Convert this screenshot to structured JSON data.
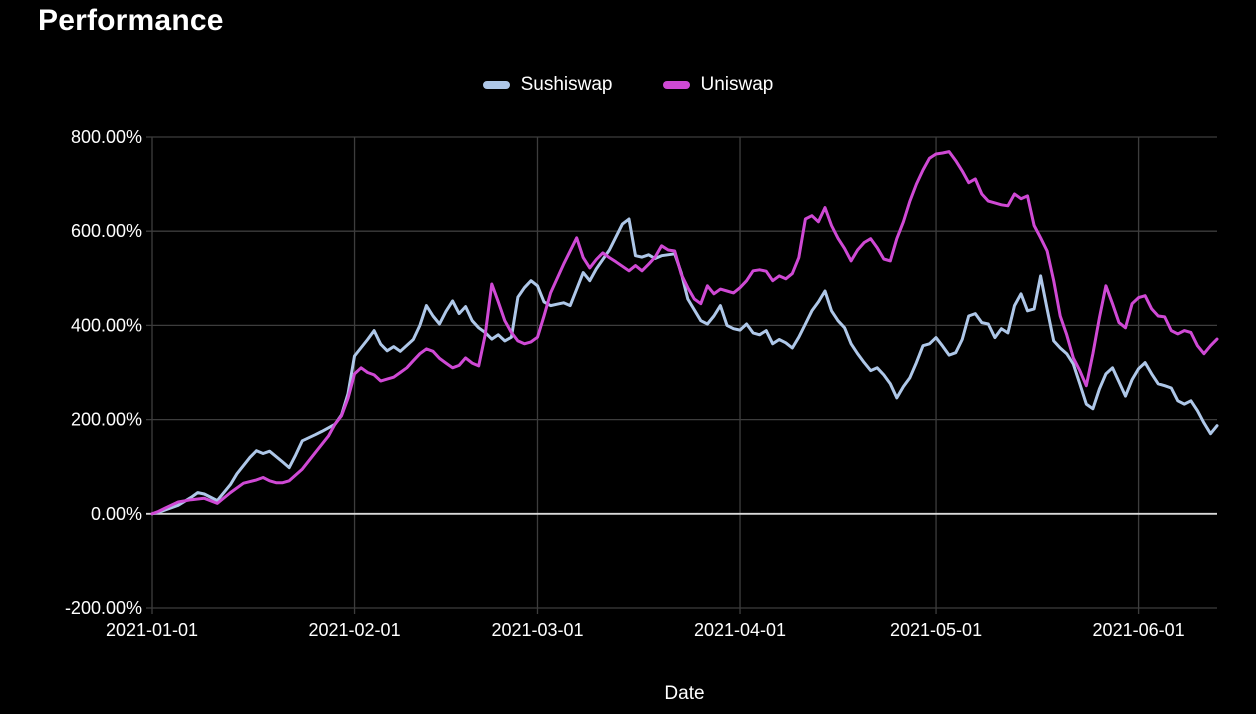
{
  "page": {
    "background": "#000000",
    "text_color": "#ffffff"
  },
  "chart_data": {
    "type": "line",
    "title": "Performance",
    "xlabel": "Date",
    "ylabel": "",
    "x_unit": "days since 2021-01-01",
    "x_range_days": [
      0,
      163
    ],
    "x_ticks": [
      {
        "day": 0,
        "label": "2021-01-01"
      },
      {
        "day": 31,
        "label": "2021-02-01"
      },
      {
        "day": 59,
        "label": "2021-03-01"
      },
      {
        "day": 90,
        "label": "2021-04-01"
      },
      {
        "day": 120,
        "label": "2021-05-01"
      },
      {
        "day": 151,
        "label": "2021-06-01"
      }
    ],
    "ylim": [
      -200,
      800
    ],
    "y_ticks": [
      {
        "value": 800,
        "label": "800.00%"
      },
      {
        "value": 600,
        "label": "600.00%"
      },
      {
        "value": 400,
        "label": "400.00%"
      },
      {
        "value": 200,
        "label": "200.00%"
      },
      {
        "value": 0,
        "label": "0.00%"
      },
      {
        "value": -200,
        "label": "-200.00%"
      }
    ],
    "grid": true,
    "legend_position": "top-center",
    "colors": {
      "grid": "#3d3d3d",
      "zero_line": "#d9d9d9",
      "axis_text": "#ffffff"
    },
    "series": [
      {
        "name": "Sushiswap",
        "color": "#aec7e8",
        "points": [
          [
            0,
            0
          ],
          [
            1,
            3
          ],
          [
            2,
            8
          ],
          [
            4,
            18
          ],
          [
            6,
            35
          ],
          [
            7,
            45
          ],
          [
            8,
            42
          ],
          [
            10,
            28
          ],
          [
            12,
            62
          ],
          [
            13,
            85
          ],
          [
            15,
            120
          ],
          [
            16,
            134
          ],
          [
            17,
            128
          ],
          [
            18,
            133
          ],
          [
            20,
            110
          ],
          [
            21,
            98
          ],
          [
            22,
            125
          ],
          [
            23,
            155
          ],
          [
            25,
            168
          ],
          [
            26,
            175
          ],
          [
            28,
            190
          ],
          [
            29,
            210
          ],
          [
            30,
            255
          ],
          [
            31,
            335
          ],
          [
            33,
            370
          ],
          [
            34,
            389
          ],
          [
            35,
            360
          ],
          [
            36,
            346
          ],
          [
            37,
            355
          ],
          [
            38,
            345
          ],
          [
            40,
            370
          ],
          [
            41,
            400
          ],
          [
            42,
            442
          ],
          [
            43,
            420
          ],
          [
            44,
            403
          ],
          [
            45,
            430
          ],
          [
            46,
            452
          ],
          [
            47,
            425
          ],
          [
            48,
            440
          ],
          [
            49,
            410
          ],
          [
            50,
            395
          ],
          [
            51,
            385
          ],
          [
            52,
            371
          ],
          [
            53,
            380
          ],
          [
            54,
            367
          ],
          [
            55,
            375
          ],
          [
            56,
            460
          ],
          [
            57,
            480
          ],
          [
            58,
            495
          ],
          [
            59,
            484
          ],
          [
            60,
            450
          ],
          [
            61,
            442
          ],
          [
            62,
            445
          ],
          [
            63,
            448
          ],
          [
            64,
            442
          ],
          [
            66,
            512
          ],
          [
            67,
            495
          ],
          [
            68,
            520
          ],
          [
            70,
            560
          ],
          [
            72,
            615
          ],
          [
            73,
            626
          ],
          [
            74,
            548
          ],
          [
            75,
            545
          ],
          [
            76,
            550
          ],
          [
            77,
            542
          ],
          [
            78,
            548
          ],
          [
            80,
            552
          ],
          [
            81,
            512
          ],
          [
            82,
            456
          ],
          [
            84,
            410
          ],
          [
            85,
            403
          ],
          [
            86,
            420
          ],
          [
            87,
            442
          ],
          [
            88,
            400
          ],
          [
            89,
            393
          ],
          [
            90,
            390
          ],
          [
            91,
            403
          ],
          [
            92,
            384
          ],
          [
            93,
            380
          ],
          [
            94,
            389
          ],
          [
            95,
            361
          ],
          [
            96,
            370
          ],
          [
            97,
            363
          ],
          [
            98,
            352
          ],
          [
            99,
            375
          ],
          [
            100,
            403
          ],
          [
            101,
            431
          ],
          [
            102,
            450
          ],
          [
            103,
            473
          ],
          [
            104,
            431
          ],
          [
            105,
            410
          ],
          [
            106,
            395
          ],
          [
            107,
            361
          ],
          [
            108,
            340
          ],
          [
            109,
            321
          ],
          [
            110,
            304
          ],
          [
            111,
            310
          ],
          [
            112,
            295
          ],
          [
            113,
            276
          ],
          [
            114,
            246
          ],
          [
            115,
            270
          ],
          [
            116,
            289
          ],
          [
            117,
            321
          ],
          [
            118,
            357
          ],
          [
            119,
            361
          ],
          [
            120,
            374
          ],
          [
            121,
            356
          ],
          [
            122,
            337
          ],
          [
            123,
            342
          ],
          [
            124,
            370
          ],
          [
            125,
            420
          ],
          [
            126,
            425
          ],
          [
            127,
            406
          ],
          [
            128,
            403
          ],
          [
            129,
            374
          ],
          [
            130,
            393
          ],
          [
            131,
            384
          ],
          [
            132,
            442
          ],
          [
            133,
            467
          ],
          [
            134,
            431
          ],
          [
            135,
            435
          ],
          [
            136,
            505
          ],
          [
            137,
            435
          ],
          [
            138,
            367
          ],
          [
            139,
            352
          ],
          [
            140,
            340
          ],
          [
            141,
            318
          ],
          [
            142,
            276
          ],
          [
            143,
            233
          ],
          [
            144,
            223
          ],
          [
            145,
            265
          ],
          [
            146,
            297
          ],
          [
            147,
            310
          ],
          [
            148,
            280
          ],
          [
            149,
            250
          ],
          [
            150,
            285
          ],
          [
            151,
            308
          ],
          [
            152,
            321
          ],
          [
            153,
            297
          ],
          [
            154,
            276
          ],
          [
            155,
            272
          ],
          [
            156,
            267
          ],
          [
            157,
            240
          ],
          [
            158,
            233
          ],
          [
            159,
            240
          ],
          [
            160,
            219
          ],
          [
            161,
            193
          ],
          [
            162,
            170
          ],
          [
            163,
            187
          ]
        ]
      },
      {
        "name": "Uniswap",
        "color": "#cf49d4",
        "points": [
          [
            0,
            0
          ],
          [
            1,
            5
          ],
          [
            2,
            12
          ],
          [
            4,
            25
          ],
          [
            6,
            30
          ],
          [
            8,
            33
          ],
          [
            10,
            22
          ],
          [
            12,
            45
          ],
          [
            14,
            65
          ],
          [
            16,
            72
          ],
          [
            17,
            77
          ],
          [
            18,
            70
          ],
          [
            19,
            66
          ],
          [
            20,
            66
          ],
          [
            21,
            70
          ],
          [
            23,
            95
          ],
          [
            25,
            130
          ],
          [
            27,
            165
          ],
          [
            28,
            190
          ],
          [
            29,
            208
          ],
          [
            30,
            245
          ],
          [
            31,
            297
          ],
          [
            32,
            310
          ],
          [
            33,
            300
          ],
          [
            34,
            295
          ],
          [
            35,
            282
          ],
          [
            36,
            286
          ],
          [
            37,
            290
          ],
          [
            38,
            300
          ],
          [
            39,
            310
          ],
          [
            40,
            325
          ],
          [
            41,
            340
          ],
          [
            42,
            350
          ],
          [
            43,
            345
          ],
          [
            44,
            330
          ],
          [
            45,
            320
          ],
          [
            46,
            310
          ],
          [
            47,
            315
          ],
          [
            48,
            331
          ],
          [
            49,
            320
          ],
          [
            50,
            314
          ],
          [
            51,
            380
          ],
          [
            52,
            488
          ],
          [
            53,
            450
          ],
          [
            54,
            410
          ],
          [
            55,
            385
          ],
          [
            56,
            367
          ],
          [
            57,
            361
          ],
          [
            58,
            365
          ],
          [
            59,
            375
          ],
          [
            60,
            420
          ],
          [
            61,
            469
          ],
          [
            63,
            530
          ],
          [
            65,
            586
          ],
          [
            66,
            544
          ],
          [
            67,
            522
          ],
          [
            68,
            540
          ],
          [
            69,
            554
          ],
          [
            70,
            544
          ],
          [
            71,
            535
          ],
          [
            73,
            516
          ],
          [
            74,
            527
          ],
          [
            75,
            516
          ],
          [
            76,
            530
          ],
          [
            77,
            545
          ],
          [
            78,
            569
          ],
          [
            79,
            560
          ],
          [
            80,
            558
          ],
          [
            81,
            509
          ],
          [
            82,
            480
          ],
          [
            83,
            456
          ],
          [
            84,
            446
          ],
          [
            85,
            484
          ],
          [
            86,
            467
          ],
          [
            87,
            477
          ],
          [
            88,
            473
          ],
          [
            89,
            469
          ],
          [
            90,
            480
          ],
          [
            91,
            495
          ],
          [
            92,
            516
          ],
          [
            93,
            518
          ],
          [
            94,
            515
          ],
          [
            95,
            495
          ],
          [
            96,
            505
          ],
          [
            97,
            499
          ],
          [
            98,
            510
          ],
          [
            99,
            544
          ],
          [
            100,
            626
          ],
          [
            101,
            633
          ],
          [
            102,
            620
          ],
          [
            103,
            650
          ],
          [
            104,
            612
          ],
          [
            105,
            585
          ],
          [
            106,
            563
          ],
          [
            107,
            537
          ],
          [
            108,
            560
          ],
          [
            109,
            576
          ],
          [
            110,
            584
          ],
          [
            111,
            565
          ],
          [
            112,
            541
          ],
          [
            113,
            537
          ],
          [
            114,
            584
          ],
          [
            115,
            620
          ],
          [
            116,
            664
          ],
          [
            117,
            700
          ],
          [
            118,
            730
          ],
          [
            119,
            755
          ],
          [
            120,
            764
          ],
          [
            121,
            766
          ],
          [
            122,
            769
          ],
          [
            123,
            750
          ],
          [
            124,
            728
          ],
          [
            125,
            703
          ],
          [
            126,
            711
          ],
          [
            127,
            679
          ],
          [
            128,
            664
          ],
          [
            129,
            660
          ],
          [
            130,
            656
          ],
          [
            131,
            654
          ],
          [
            132,
            679
          ],
          [
            133,
            669
          ],
          [
            134,
            675
          ],
          [
            135,
            612
          ],
          [
            136,
            586
          ],
          [
            137,
            558
          ],
          [
            138,
            495
          ],
          [
            139,
            420
          ],
          [
            140,
            380
          ],
          [
            141,
            331
          ],
          [
            142,
            304
          ],
          [
            143,
            272
          ],
          [
            144,
            340
          ],
          [
            145,
            416
          ],
          [
            146,
            484
          ],
          [
            147,
            446
          ],
          [
            148,
            406
          ],
          [
            149,
            395
          ],
          [
            150,
            446
          ],
          [
            151,
            459
          ],
          [
            152,
            463
          ],
          [
            153,
            435
          ],
          [
            154,
            420
          ],
          [
            155,
            418
          ],
          [
            156,
            389
          ],
          [
            157,
            382
          ],
          [
            158,
            389
          ],
          [
            159,
            385
          ],
          [
            160,
            357
          ],
          [
            161,
            340
          ],
          [
            162,
            357
          ],
          [
            163,
            371
          ]
        ]
      }
    ]
  }
}
